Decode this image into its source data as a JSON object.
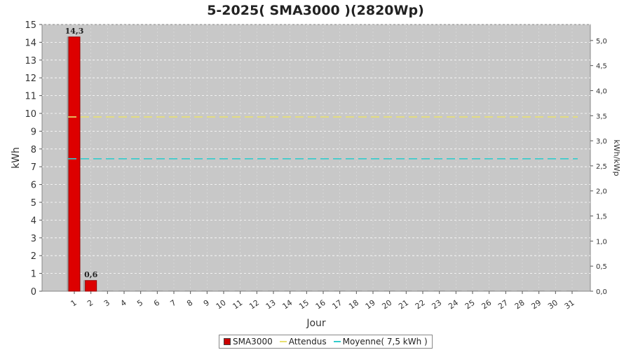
{
  "chart_data": {
    "type": "bar",
    "title": "5-2025( SMA3000 )(2820Wp)",
    "xlabel": "Jour",
    "ylabel": "kWh",
    "y2label": "kWh/kWp",
    "categories": [
      "1",
      "2",
      "3",
      "4",
      "5",
      "6",
      "7",
      "8",
      "9",
      "10",
      "11",
      "12",
      "13",
      "14",
      "15",
      "16",
      "17",
      "18",
      "19",
      "20",
      "21",
      "22",
      "23",
      "24",
      "25",
      "26",
      "27",
      "28",
      "29",
      "30",
      "31"
    ],
    "ylim": [
      0,
      15
    ],
    "yticks": [
      0,
      1,
      2,
      3,
      4,
      5,
      6,
      7,
      8,
      9,
      10,
      11,
      12,
      13,
      14,
      15
    ],
    "y2lim": [
      0,
      5.319
    ],
    "y2ticks": [
      "0,0",
      "0,5",
      "1,0",
      "1,5",
      "2,0",
      "2,5",
      "3,0",
      "3,5",
      "4,0",
      "4,5",
      "5,0"
    ],
    "series": [
      {
        "name": "SMA3000",
        "values": [
          14.3,
          0.6,
          0,
          0,
          0,
          0,
          0,
          0,
          0,
          0,
          0,
          0,
          0,
          0,
          0,
          0,
          0,
          0,
          0,
          0,
          0,
          0,
          0,
          0,
          0,
          0,
          0,
          0,
          0,
          0,
          0
        ],
        "labels": [
          "14,3",
          "0,6",
          "",
          "",
          "",
          "",
          "",
          "",
          "",
          "",
          "",
          "",
          "",
          "",
          "",
          "",
          "",
          "",
          "",
          "",
          "",
          "",
          "",
          "",
          "",
          "",
          "",
          "",
          "",
          "",
          ""
        ],
        "color": "#dd0000"
      },
      {
        "name": "Attendus",
        "value": 9.8,
        "color": "#e8e070"
      },
      {
        "name": "Moyenne( 7,5 kWh )",
        "value": 7.45,
        "color": "#33cccc"
      }
    ],
    "grid": true,
    "legend_position": "bottom",
    "plot_background": "#c8c8c8"
  }
}
